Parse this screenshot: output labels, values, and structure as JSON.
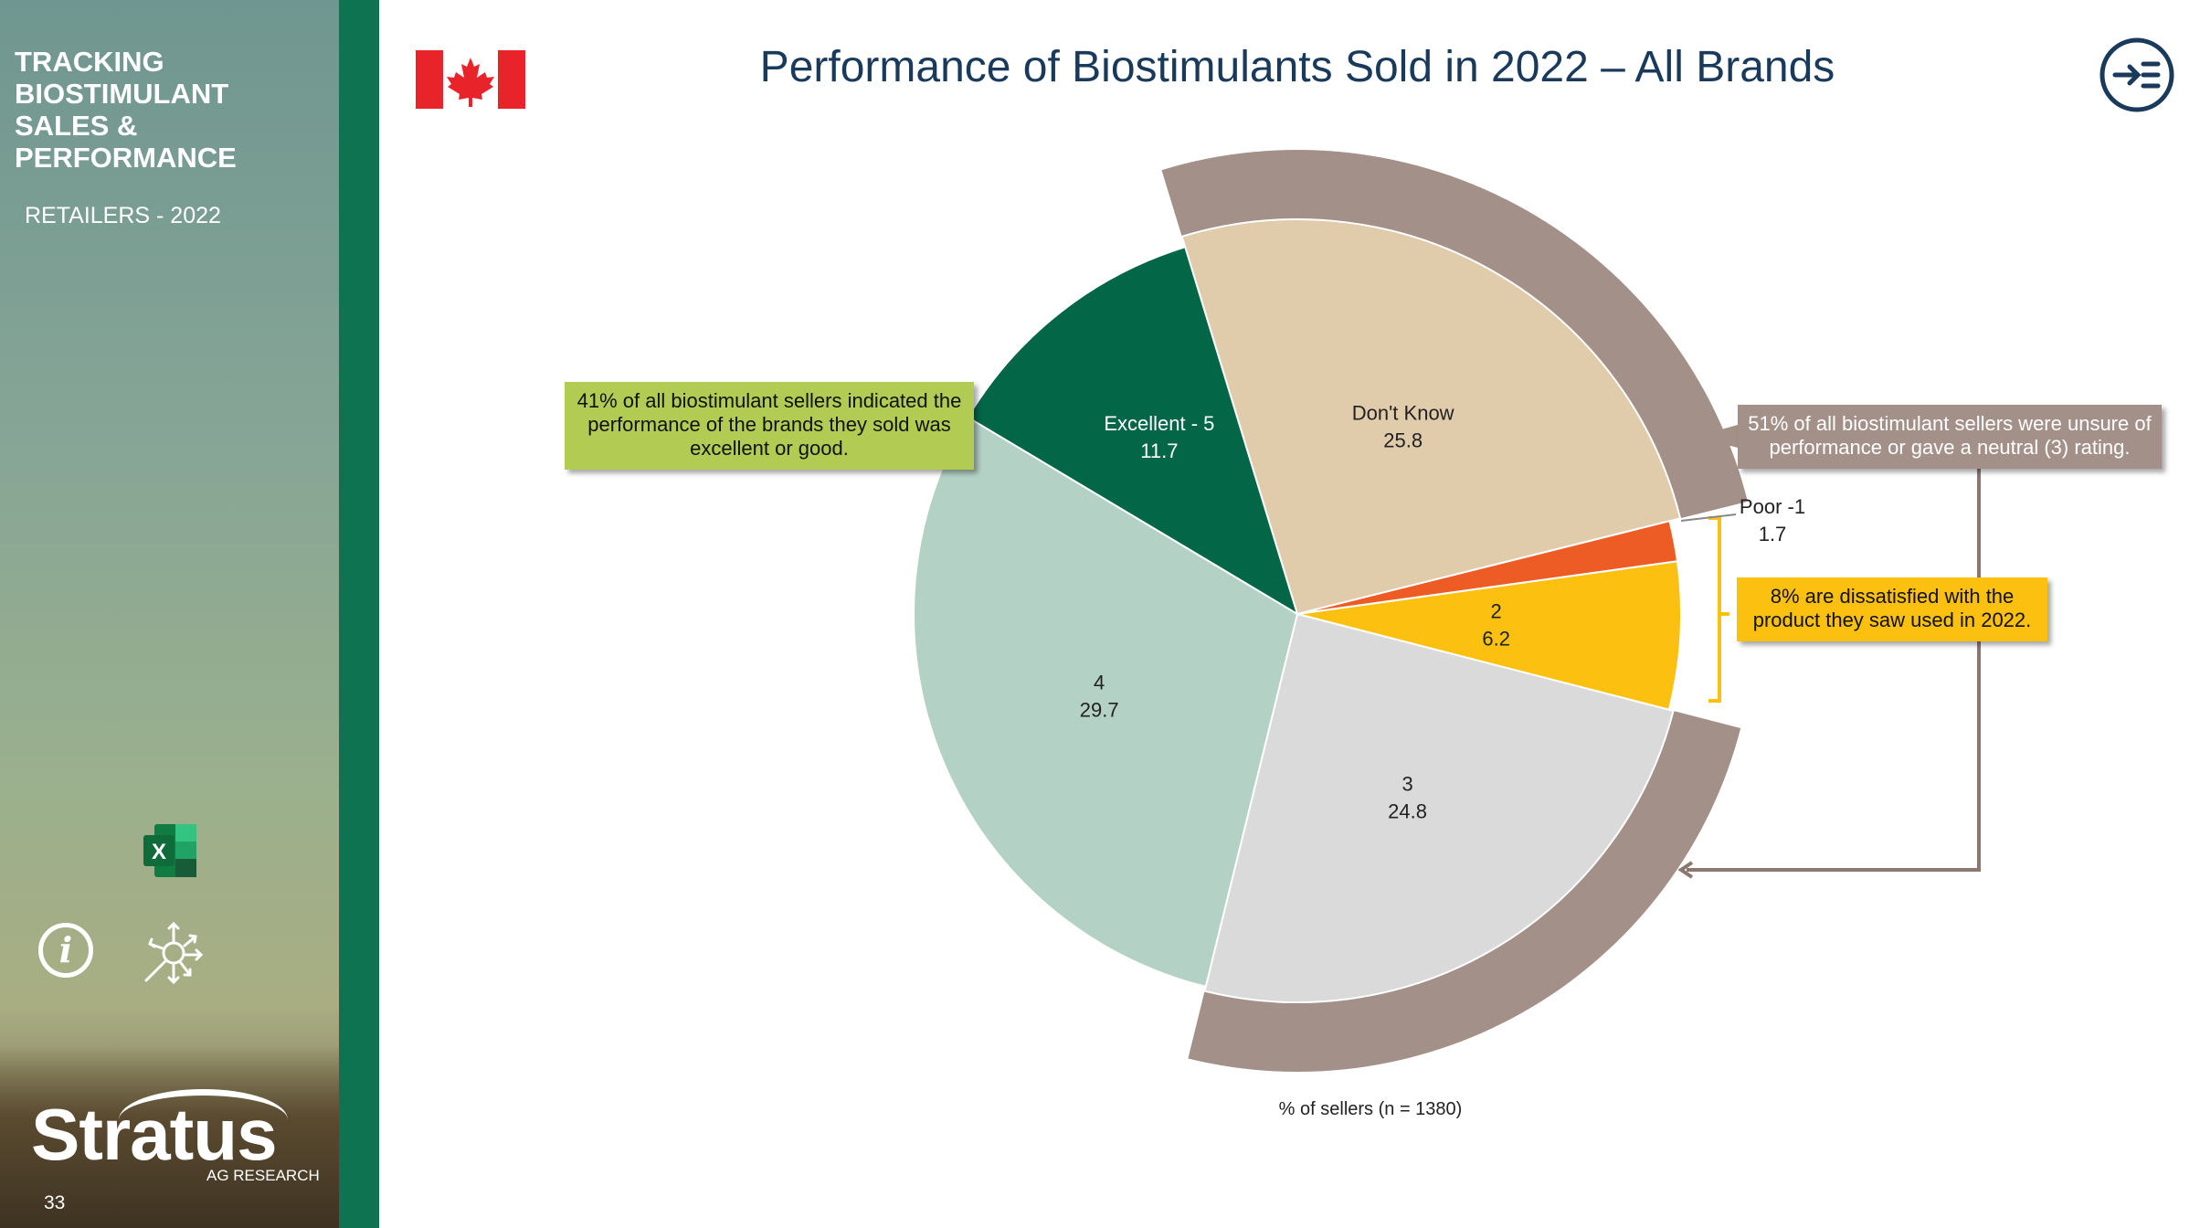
{
  "sidebar": {
    "title": "TRACKING BIOSTIMULANT SALES & PERFORMANCE",
    "subtitle": "RETAILERS - 2022",
    "logo_text": "Stratus",
    "logo_sub": "AG RESEARCH",
    "page_number": "33",
    "icons": [
      "excel-icon",
      "info-icon",
      "analyze-icon"
    ]
  },
  "header": {
    "title": "Performance of Biostimulants Sold in 2022 – All Brands",
    "flag_icon": "canada-flag-icon",
    "nav_icon": "menu-arrow-icon"
  },
  "callouts": {
    "good": "41% of all biostimulant sellers indicated the performance of the brands they sold was excellent or good.",
    "unsure": "51% of all biostimulant sellers were unsure of performance or gave a neutral (3) rating.",
    "dissatisfied": "8% are dissatisfied with the product they saw used in 2022."
  },
  "colors": {
    "excellent": "#036647",
    "dont_know": "#e0cbab",
    "poor": "#ed5c24",
    "two": "#fcc010",
    "three": "#dadada",
    "four": "#b4d1c5",
    "highlight_ring": "#a39089",
    "accent": "#0d7350"
  },
  "chart_data": {
    "type": "pie",
    "title": "Performance of Biostimulants Sold in 2022 – All Brands",
    "xlabel": "% of sellers (n = 1380)",
    "slices": [
      {
        "label": "Don't Know",
        "value": 25.8
      },
      {
        "label": "Poor -1",
        "value": 1.7
      },
      {
        "label": "2",
        "value": 6.2
      },
      {
        "label": "3",
        "value": 24.8
      },
      {
        "label": "4",
        "value": 29.7
      },
      {
        "label": "Excellent - 5",
        "value": 11.7
      }
    ],
    "highlighted": [
      "Don't Know",
      "3"
    ]
  }
}
